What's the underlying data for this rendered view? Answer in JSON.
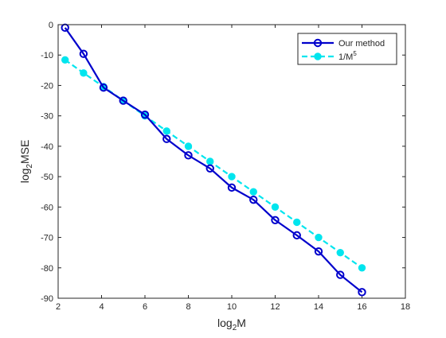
{
  "chart_data": {
    "type": "line",
    "title": "",
    "xlabel": {
      "base": "log",
      "sub": "2",
      "rest": "M"
    },
    "ylabel": {
      "base": "log",
      "sub": "2",
      "rest": "MSE"
    },
    "xlim": [
      2,
      18
    ],
    "ylim": [
      -90,
      0
    ],
    "xticks": [
      2,
      4,
      6,
      8,
      10,
      12,
      14,
      16,
      18
    ],
    "yticks": [
      0,
      -10,
      -20,
      -30,
      -40,
      -50,
      -60,
      -70,
      -80,
      -90
    ],
    "grid": false,
    "legend_position": "top-right",
    "series": [
      {
        "name": "Our method",
        "color": "#0000cc",
        "line": "solid",
        "marker": "open-circle",
        "x": [
          2.32,
          3.17,
          4.09,
          5.0,
          6.0,
          7.0,
          8.0,
          9.0,
          10.0,
          11.0,
          12.0,
          13.0,
          14.0,
          15.0,
          16.0
        ],
        "y": [
          -1,
          -9.6,
          -20.7,
          -25,
          -29.6,
          -37.6,
          -43,
          -47.3,
          -53.6,
          -57.6,
          -64.3,
          -69.3,
          -74.6,
          -82.3,
          -88
        ]
      },
      {
        "name": "1/M",
        "name_sup": "5",
        "color": "#00e5ee",
        "line": "dashed",
        "marker": "filled-circle",
        "x": [
          2.32,
          3.17,
          4.09,
          5.0,
          6.0,
          7.0,
          8.0,
          9.0,
          10.0,
          11.0,
          12.0,
          13.0,
          14.0,
          15.0,
          16.0
        ],
        "y": [
          -11.6,
          -15.9,
          -20.4,
          -25,
          -30,
          -35,
          -40,
          -45,
          -50,
          -55,
          -60,
          -65,
          -70,
          -75,
          -80
        ]
      }
    ]
  }
}
